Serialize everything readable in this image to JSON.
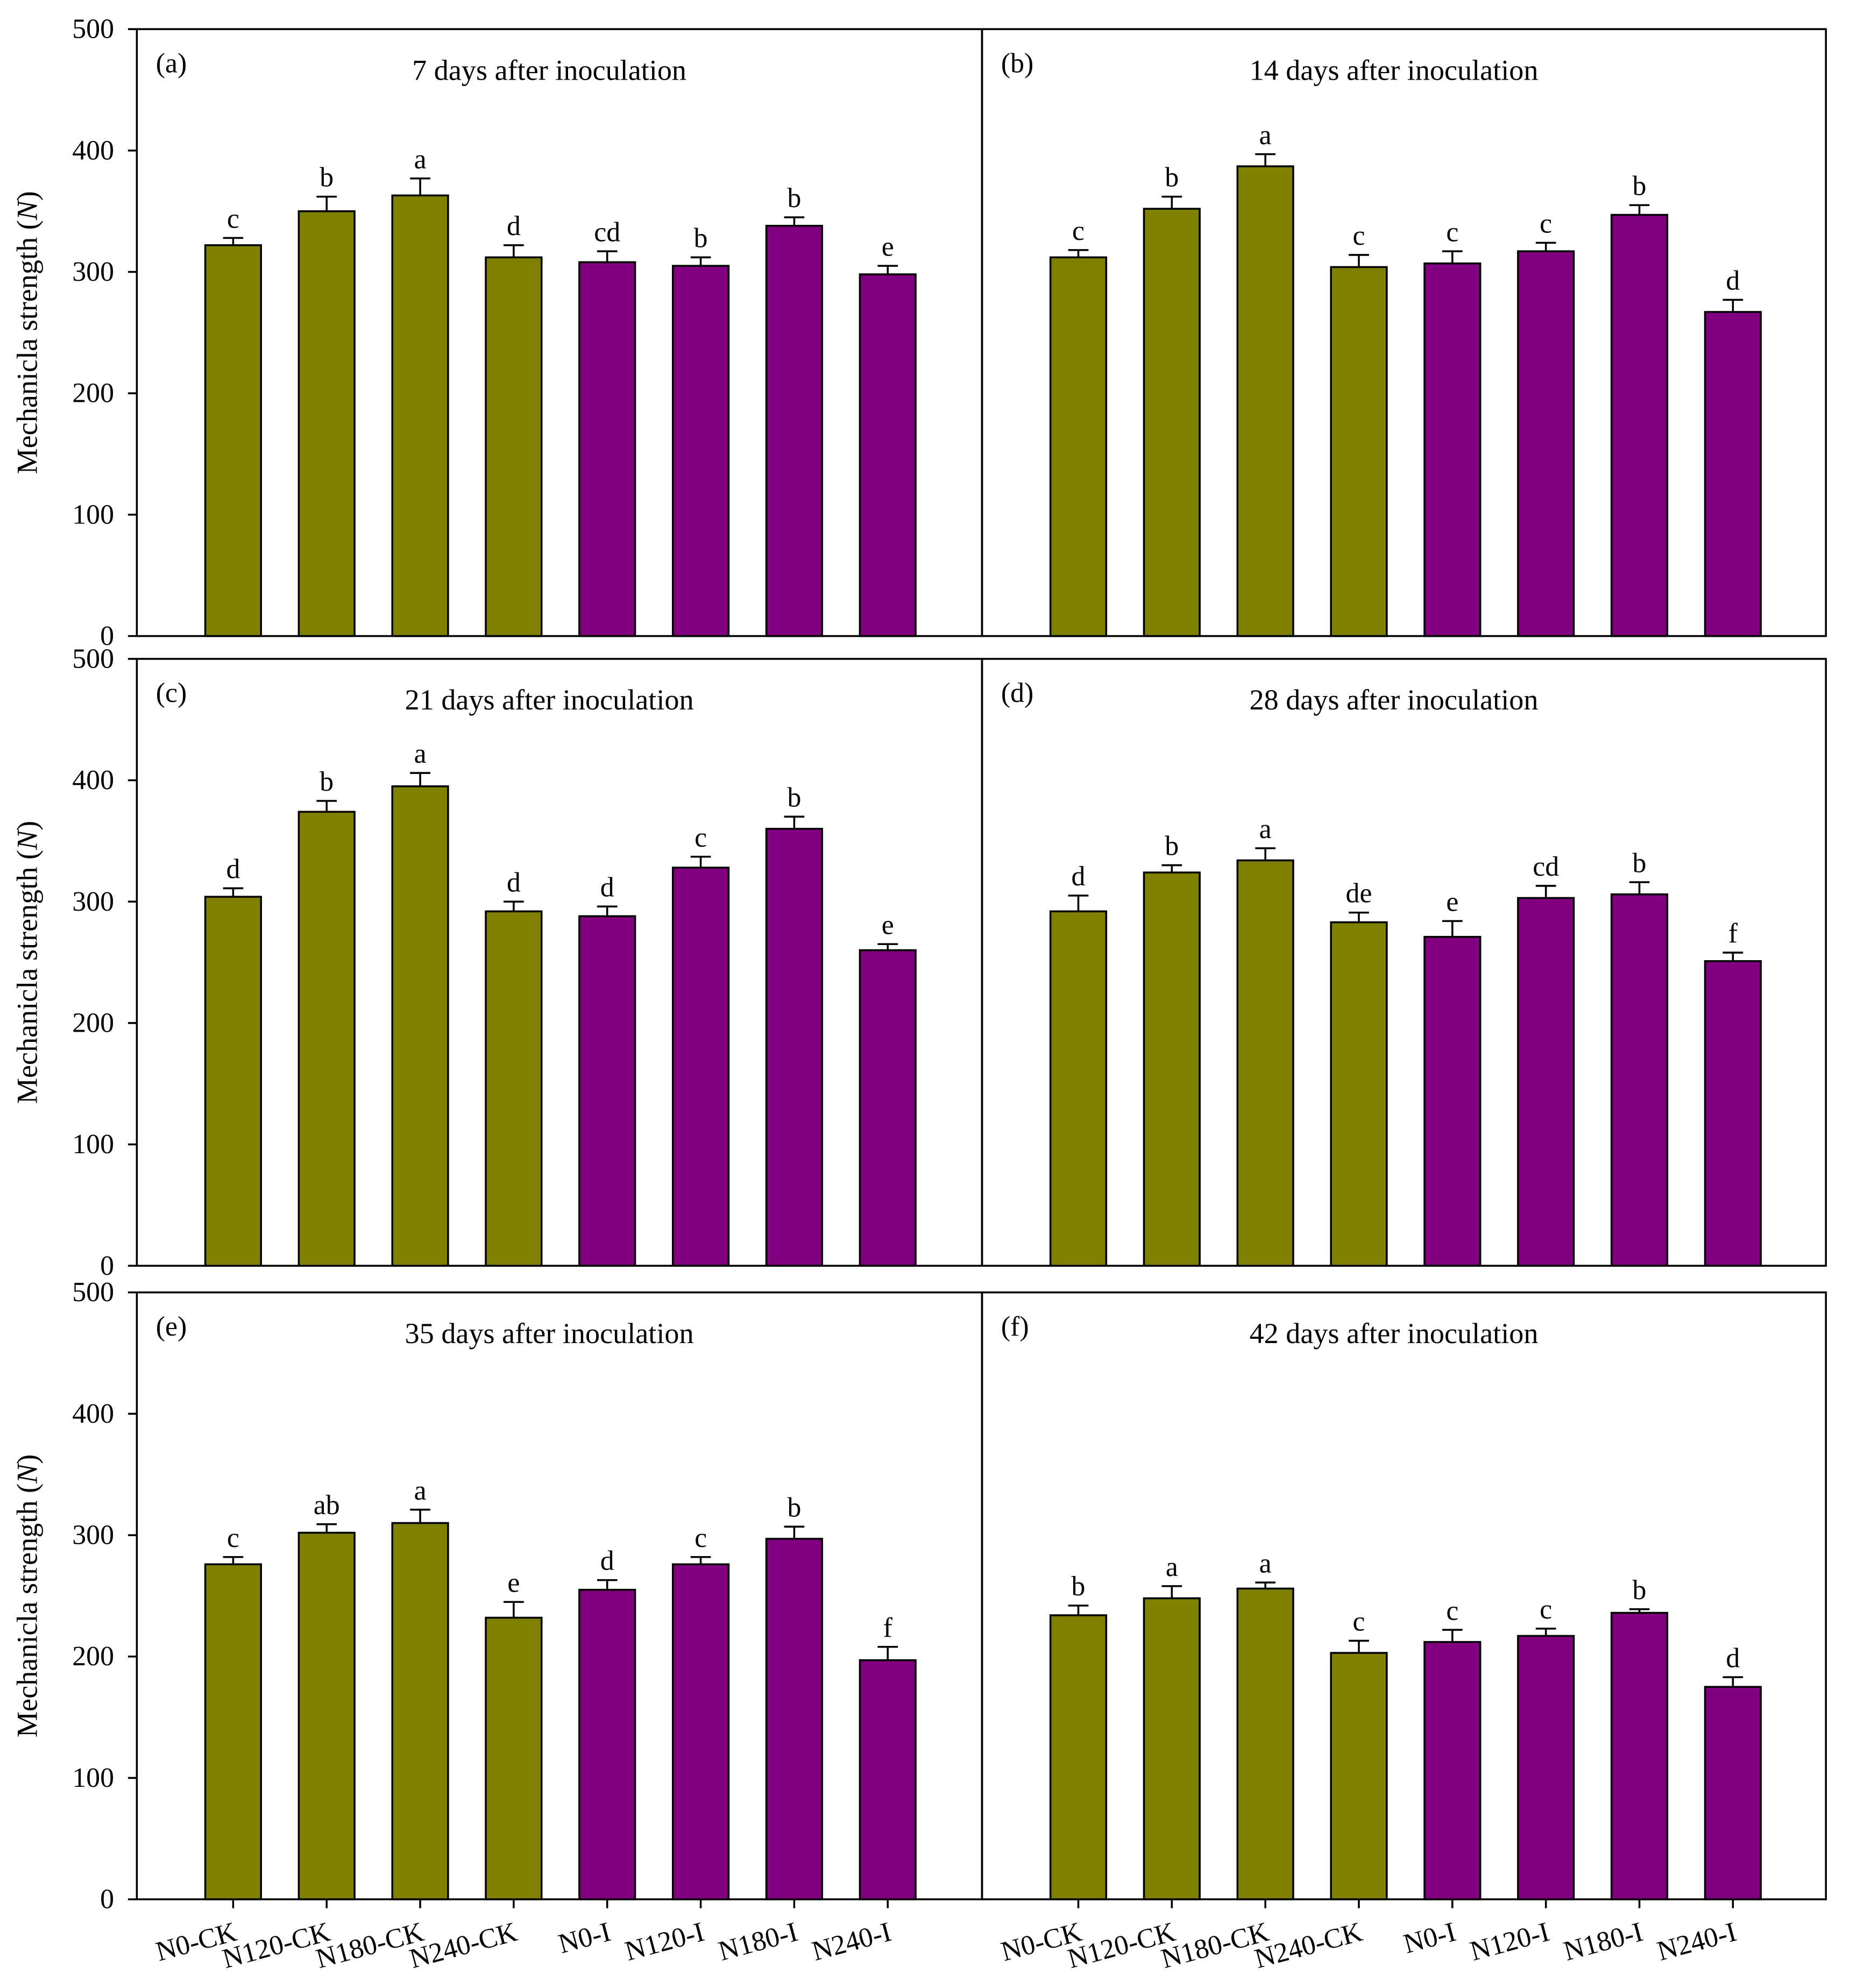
{
  "chart_data": {
    "type": "bar",
    "ylabel": "Mechanicla strength (N)",
    "ylabel_main": "Mechanicla strength (",
    "ylabel_unit": "N",
    "ylabel_close": ")",
    "ylim": [
      0,
      500
    ],
    "yticks": [
      0,
      100,
      200,
      300,
      400,
      500
    ],
    "grid": false,
    "categories": [
      "N0-CK",
      "N120-CK",
      "N180-CK",
      "N240-CK",
      "N0-I",
      "N120-I",
      "N180-I",
      "N240-I"
    ],
    "colors": {
      "CK": "#808000",
      "I": "#800080"
    },
    "bar_groups": [
      "CK",
      "CK",
      "CK",
      "CK",
      "I",
      "I",
      "I",
      "I"
    ],
    "panels": [
      {
        "label": "(a)",
        "title": "7 days after inoculation",
        "values": [
          322,
          350,
          363,
          312,
          308,
          305,
          338,
          298
        ],
        "errors": [
          6,
          12,
          14,
          10,
          9,
          7,
          7,
          7
        ],
        "letters": [
          "c",
          "b",
          "a",
          "d",
          "cd",
          "b",
          "b",
          "e"
        ]
      },
      {
        "label": "(b)",
        "title": "14 days after inoculation",
        "values": [
          312,
          352,
          387,
          304,
          307,
          317,
          347,
          267
        ],
        "errors": [
          6,
          10,
          10,
          10,
          10,
          7,
          8,
          10
        ],
        "letters": [
          "c",
          "b",
          "a",
          "c",
          "c",
          "c",
          "b",
          "d"
        ]
      },
      {
        "label": "(c)",
        "title": "21 days after inoculation",
        "values": [
          304,
          374,
          395,
          292,
          288,
          328,
          360,
          260
        ],
        "errors": [
          7,
          9,
          11,
          8,
          8,
          9,
          10,
          5
        ],
        "letters": [
          "d",
          "b",
          "a",
          "d",
          "d",
          "c",
          "b",
          "e"
        ]
      },
      {
        "label": "(d)",
        "title": "28 days after inoculation",
        "values": [
          292,
          324,
          334,
          283,
          271,
          303,
          306,
          251
        ],
        "errors": [
          13,
          6,
          10,
          8,
          13,
          10,
          10,
          7
        ],
        "letters": [
          "d",
          "b",
          "a",
          "de",
          "e",
          "cd",
          "b",
          "f"
        ]
      },
      {
        "label": "(e)",
        "title": "35 days after inoculation",
        "values": [
          276,
          302,
          310,
          232,
          255,
          276,
          297,
          197
        ],
        "errors": [
          6,
          7,
          11,
          13,
          8,
          6,
          10,
          11
        ],
        "letters": [
          "c",
          "ab",
          "a",
          "e",
          "d",
          "c",
          "b",
          "f"
        ]
      },
      {
        "label": "(f)",
        "title": "42 days after inoculation",
        "values": [
          234,
          248,
          256,
          203,
          212,
          217,
          236,
          175
        ],
        "errors": [
          8,
          10,
          5,
          10,
          10,
          6,
          3,
          8
        ],
        "letters": [
          "b",
          "a",
          "a",
          "c",
          "c",
          "c",
          "b",
          "d"
        ]
      }
    ]
  }
}
